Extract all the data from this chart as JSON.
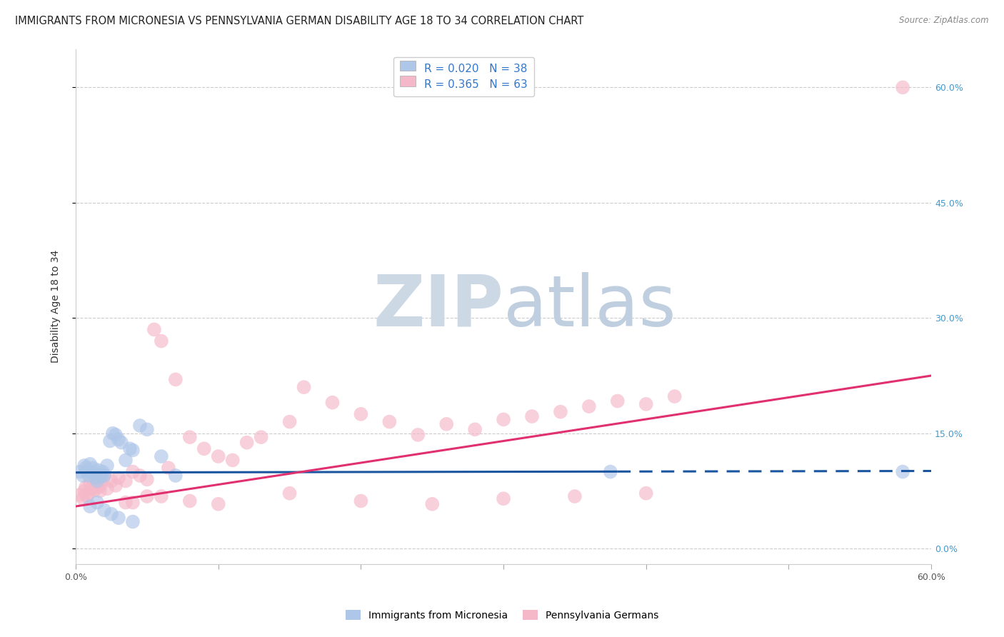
{
  "title": "IMMIGRANTS FROM MICRONESIA VS PENNSYLVANIA GERMAN DISABILITY AGE 18 TO 34 CORRELATION CHART",
  "source_text": "Source: ZipAtlas.com",
  "ylabel": "Disability Age 18 to 34",
  "xlim": [
    0.0,
    0.6
  ],
  "ylim": [
    -0.02,
    0.65
  ],
  "yticks": [
    0.0,
    0.15,
    0.3,
    0.45,
    0.6
  ],
  "ytick_labels": [
    "0.0%",
    "15.0%",
    "30.0%",
    "45.0%",
    "60.0%"
  ],
  "xticks": [
    0.0,
    0.1,
    0.2,
    0.3,
    0.4,
    0.5,
    0.6
  ],
  "xtick_labels": [
    "0.0%",
    "",
    "",
    "",
    "",
    "",
    "60.0%"
  ],
  "legend_r1": "R = 0.020",
  "legend_n1": "N = 38",
  "legend_r2": "R = 0.365",
  "legend_n2": "N = 63",
  "color_blue": "#aec6e8",
  "color_pink": "#f5b8c8",
  "color_blue_line": "#1a55a0",
  "color_pink_line": "#e03070",
  "color_blue_text": "#3377cc",
  "color_pink_text": "#e03070",
  "watermark_ZIP_color": "#c8d8e8",
  "watermark_atlas_color": "#c8d8e8",
  "title_fontsize": 10.5,
  "label_fontsize": 10,
  "tick_fontsize": 9,
  "right_tick_color": "#4499cc",
  "micronesia_x": [
    0.003,
    0.005,
    0.006,
    0.007,
    0.008,
    0.009,
    0.01,
    0.011,
    0.012,
    0.013,
    0.014,
    0.015,
    0.016,
    0.017,
    0.018,
    0.019,
    0.02,
    0.022,
    0.024,
    0.026,
    0.028,
    0.03,
    0.032,
    0.035,
    0.038,
    0.04,
    0.045,
    0.05,
    0.06,
    0.07,
    0.01,
    0.015,
    0.02,
    0.025,
    0.03,
    0.04,
    0.375,
    0.58
  ],
  "micronesia_y": [
    0.1,
    0.095,
    0.108,
    0.105,
    0.1,
    0.095,
    0.11,
    0.1,
    0.105,
    0.098,
    0.092,
    0.088,
    0.102,
    0.096,
    0.094,
    0.1,
    0.095,
    0.108,
    0.14,
    0.15,
    0.148,
    0.142,
    0.138,
    0.115,
    0.13,
    0.128,
    0.16,
    0.155,
    0.12,
    0.095,
    0.055,
    0.06,
    0.05,
    0.045,
    0.04,
    0.035,
    0.1,
    0.1
  ],
  "penn_german_x": [
    0.003,
    0.005,
    0.006,
    0.007,
    0.008,
    0.009,
    0.01,
    0.011,
    0.012,
    0.013,
    0.014,
    0.015,
    0.016,
    0.017,
    0.018,
    0.019,
    0.02,
    0.022,
    0.025,
    0.028,
    0.03,
    0.035,
    0.04,
    0.045,
    0.05,
    0.055,
    0.06,
    0.065,
    0.07,
    0.08,
    0.09,
    0.1,
    0.11,
    0.12,
    0.13,
    0.15,
    0.16,
    0.18,
    0.2,
    0.22,
    0.24,
    0.26,
    0.28,
    0.3,
    0.32,
    0.34,
    0.36,
    0.38,
    0.4,
    0.42,
    0.05,
    0.1,
    0.15,
    0.2,
    0.25,
    0.3,
    0.35,
    0.4,
    0.035,
    0.58,
    0.04,
    0.06,
    0.08
  ],
  "penn_german_y": [
    0.07,
    0.065,
    0.075,
    0.08,
    0.068,
    0.072,
    0.085,
    0.078,
    0.082,
    0.076,
    0.088,
    0.092,
    0.08,
    0.075,
    0.085,
    0.09,
    0.095,
    0.078,
    0.088,
    0.082,
    0.092,
    0.088,
    0.1,
    0.095,
    0.09,
    0.285,
    0.27,
    0.105,
    0.22,
    0.145,
    0.13,
    0.12,
    0.115,
    0.138,
    0.145,
    0.165,
    0.21,
    0.19,
    0.175,
    0.165,
    0.148,
    0.162,
    0.155,
    0.168,
    0.172,
    0.178,
    0.185,
    0.192,
    0.188,
    0.198,
    0.068,
    0.058,
    0.072,
    0.062,
    0.058,
    0.065,
    0.068,
    0.072,
    0.06,
    0.6,
    0.06,
    0.068,
    0.062
  ],
  "blue_line_x0": 0.0,
  "blue_line_x1": 0.6,
  "blue_line_y0": 0.099,
  "blue_line_y1": 0.101,
  "pink_line_x0": 0.0,
  "pink_line_x1": 0.6,
  "pink_line_y0": 0.055,
  "pink_line_y1": 0.225
}
